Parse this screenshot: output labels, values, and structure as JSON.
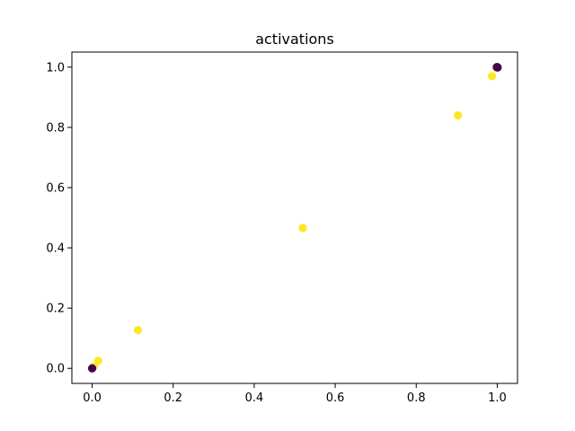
{
  "chart_data": {
    "type": "scatter",
    "title": "activations",
    "xlabel": "",
    "ylabel": "",
    "xlim": [
      -0.05,
      1.05
    ],
    "ylim": [
      -0.05,
      1.05
    ],
    "grid": false,
    "legend": "none",
    "xticks": [
      0.0,
      0.2,
      0.4,
      0.6,
      0.8,
      1.0
    ],
    "yticks": [
      0.0,
      0.2,
      0.4,
      0.6,
      0.8,
      1.0
    ],
    "xtick_labels": [
      "0.0",
      "0.2",
      "0.4",
      "0.6",
      "0.8",
      "1.0"
    ],
    "ytick_labels": [
      "0.0",
      "0.2",
      "0.4",
      "0.6",
      "0.8",
      "1.0"
    ],
    "colors": {
      "yellow": "#fde725",
      "purple": "#440154",
      "axis": "#000000"
    },
    "series": [
      {
        "color": "#fde725",
        "points": [
          [
            0.0,
            0.0
          ],
          [
            0.002,
            0.002
          ],
          [
            0.004,
            0.006
          ],
          [
            0.015,
            0.025
          ],
          [
            0.113,
            0.127
          ],
          [
            0.52,
            0.466
          ],
          [
            0.903,
            0.84
          ],
          [
            0.987,
            0.97
          ],
          [
            0.998,
            0.998
          ],
          [
            1.0,
            1.0
          ]
        ]
      },
      {
        "color": "#440154",
        "points": [
          [
            0.0,
            0.0
          ],
          [
            0.999,
            1.0
          ],
          [
            1.0,
            1.0
          ],
          [
            1.001,
            0.999
          ]
        ]
      }
    ]
  }
}
